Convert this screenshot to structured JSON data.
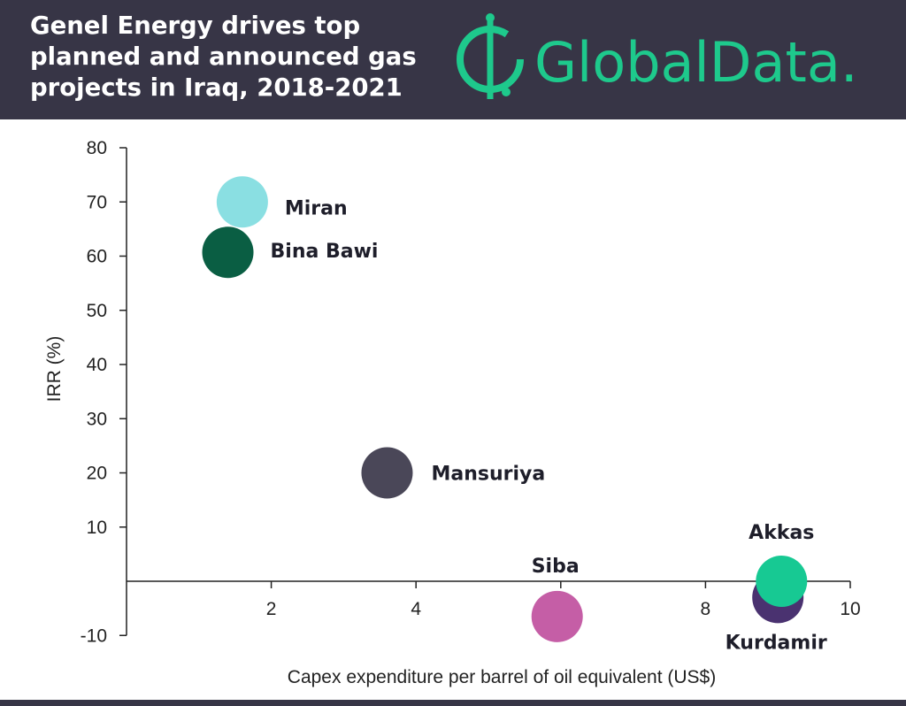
{
  "header": {
    "title": "Genel Energy drives top planned and announced gas projects in Iraq, 2018-2021",
    "logo_text": "GlobalData."
  },
  "colors": {
    "header_bg": "#373546",
    "brand_green": "#1ec98c"
  },
  "chart_data": {
    "type": "scatter",
    "title": "Genel Energy drives top planned and announced gas projects in Iraq, 2018-2021",
    "xlabel": "Capex expenditure per barrel of oil equivalent (US$)",
    "ylabel": "IRR (%)",
    "xlim": [
      0,
      10
    ],
    "ylim": [
      -10,
      80
    ],
    "xticks": [
      2,
      4,
      6,
      8,
      10
    ],
    "yticks": [
      -10,
      10,
      20,
      30,
      40,
      50,
      60,
      70,
      80
    ],
    "grid": false,
    "points": [
      {
        "label": "Miran",
        "x": 1.6,
        "y": 70,
        "color": "#8adfe2"
      },
      {
        "label": "Bina Bawi",
        "x": 1.4,
        "y": 60.7,
        "color": "#0a5e43"
      },
      {
        "label": "Mansuriya",
        "x": 3.6,
        "y": 20,
        "color": "#4a4758"
      },
      {
        "label": "Siba",
        "x": 5.95,
        "y": -6.5,
        "color": "#c55ea6"
      },
      {
        "label": "Kurdamir",
        "x": 9.0,
        "y": -3,
        "color": "#4a3270"
      },
      {
        "label": "Akkas",
        "x": 9.05,
        "y": 0,
        "color": "#17c993"
      }
    ]
  }
}
